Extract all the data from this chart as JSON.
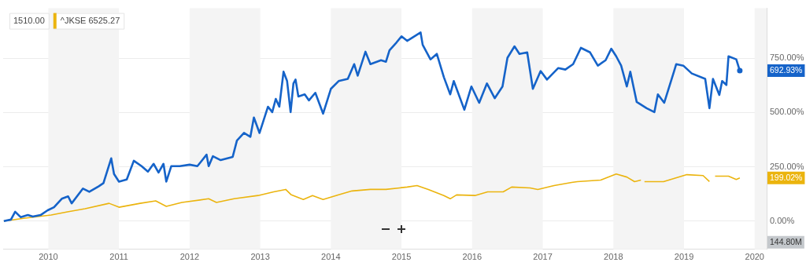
{
  "chart_data": {
    "type": "line",
    "xlim": [
      2009.36,
      2020.17
    ],
    "xticks": [
      2010,
      2011,
      2012,
      2013,
      2014,
      2015,
      2016,
      2017,
      2018,
      2019,
      2020
    ],
    "ylim": [
      -130,
      980
    ],
    "yticks": [
      {
        "value": 0,
        "label": "0.00%"
      },
      {
        "value": 250,
        "label": "250.00%"
      },
      {
        "value": 500,
        "label": "500.00%"
      },
      {
        "value": 750,
        "label": "750.00%"
      }
    ],
    "grid": "y",
    "legend": "top left",
    "marker": "none",
    "bands": [
      {
        "axis": "x",
        "from": 2010,
        "to": 2011,
        "color": "#f4f4f4"
      },
      {
        "axis": "x",
        "from": 2012,
        "to": 2013,
        "color": "#f4f4f4"
      },
      {
        "axis": "x",
        "from": 2014,
        "to": 2015,
        "color": "#f4f4f4"
      },
      {
        "axis": "x",
        "from": 2016,
        "to": 2017,
        "color": "#f4f4f4"
      },
      {
        "axis": "x",
        "from": 2018,
        "to": 2019,
        "color": "#f4f4f4"
      },
      {
        "axis": "x",
        "from": 2020,
        "to": 2020.17,
        "color": "#f4f4f4"
      }
    ],
    "annotations": [
      "1510.00",
      "692.93%",
      "199.02%",
      "144.80M"
    ],
    "series": [
      {
        "color": "#1563c9",
        "x": [
          2009.37,
          2009.47,
          2009.53,
          2009.61,
          2009.71,
          2009.78,
          2009.89,
          2009.99,
          2010.08,
          2010.19,
          2010.28,
          2010.33,
          2010.49,
          2010.58,
          2010.71,
          2010.78,
          2010.89,
          2010.93,
          2011.0,
          2011.11,
          2011.21,
          2011.32,
          2011.41,
          2011.49,
          2011.56,
          2011.63,
          2011.67,
          2011.74,
          2011.86,
          2012.0,
          2012.11,
          2012.24,
          2012.27,
          2012.33,
          2012.44,
          2012.61,
          2012.67,
          2012.77,
          2012.86,
          2012.91,
          2012.99,
          2013.11,
          2013.17,
          2013.22,
          2013.27,
          2013.33,
          2013.38,
          2013.43,
          2013.47,
          2013.5,
          2013.54,
          2013.63,
          2013.69,
          2013.78,
          2013.89,
          2014.0,
          2014.11,
          2014.24,
          2014.33,
          2014.38,
          2014.49,
          2014.56,
          2014.71,
          2014.78,
          2014.83,
          2014.93,
          2015.0,
          2015.08,
          2015.27,
          2015.3,
          2015.41,
          2015.5,
          2015.6,
          2015.69,
          2015.74,
          2015.89,
          2015.99,
          2016.1,
          2016.21,
          2016.32,
          2016.43,
          2016.5,
          2016.6,
          2016.67,
          2016.78,
          2016.86,
          2016.97,
          2017.06,
          2017.22,
          2017.32,
          2017.43,
          2017.54,
          2017.67,
          2017.78,
          2017.89,
          2017.97,
          2018.04,
          2018.11,
          2018.19,
          2018.24,
          2018.33,
          2018.47,
          2018.58,
          2018.63,
          2018.72,
          2018.86,
          2018.89,
          2018.99,
          2019.11,
          2019.3,
          2019.36,
          2019.41,
          2019.5,
          2019.54,
          2019.6,
          2019.63,
          2019.74,
          2019.79
        ],
        "values": [
          0,
          7,
          43,
          18,
          28,
          21,
          28,
          50,
          64,
          103,
          114,
          82,
          150,
          135,
          160,
          175,
          289,
          217,
          182,
          192,
          278,
          253,
          228,
          264,
          224,
          264,
          182,
          253,
          253,
          260,
          253,
          306,
          253,
          299,
          281,
          296,
          371,
          406,
          388,
          477,
          406,
          527,
          502,
          563,
          527,
          688,
          645,
          502,
          634,
          652,
          574,
          584,
          556,
          591,
          495,
          609,
          645,
          655,
          723,
          670,
          780,
          723,
          741,
          734,
          787,
          823,
          851,
          830,
          869,
          812,
          745,
          770,
          663,
          584,
          645,
          513,
          620,
          545,
          634,
          566,
          620,
          752,
          805,
          770,
          777,
          609,
          691,
          652,
          705,
          698,
          723,
          798,
          777,
          716,
          741,
          794,
          759,
          716,
          620,
          688,
          549,
          520,
          502,
          584,
          545,
          691,
          723,
          716,
          680,
          655,
          520,
          655,
          581,
          645,
          627,
          759,
          745,
          692.93
        ]
      },
      {
        "name": "^JKSE 6525.27",
        "color": "#ebb40e",
        "x": [
          2009.37,
          2009.67,
          2010.04,
          2010.27,
          2010.52,
          2010.86,
          2011.0,
          2011.3,
          2011.52,
          2011.67,
          2011.89,
          2012.27,
          2012.38,
          2012.63,
          2012.97,
          2013.19,
          2013.36,
          2013.44,
          2013.61,
          2013.74,
          2013.89,
          2014.11,
          2014.3,
          2014.56,
          2014.78,
          2015.08,
          2015.22,
          2015.38,
          2015.6,
          2015.69,
          2015.78,
          2016.04,
          2016.22,
          2016.44,
          2016.56,
          2016.82,
          2016.93,
          2017.16,
          2017.41,
          2017.49,
          2017.82,
          2018.04,
          2018.19,
          2018.3,
          2018.39,
          2018.42,
          2018.44,
          2018.71,
          2019.04,
          2019.27,
          2019.36,
          2019.39,
          2019.44,
          2019.63,
          2019.74,
          2019.79
        ],
        "values": [
          0,
          14,
          28,
          43,
          57,
          82,
          64,
          82,
          93,
          68,
          86,
          103,
          86,
          103,
          118,
          135,
          146,
          121,
          100,
          118,
          100,
          121,
          139,
          146,
          146,
          157,
          164,
          146,
          118,
          103,
          121,
          118,
          135,
          135,
          157,
          153,
          146,
          164,
          178,
          182,
          189,
          217,
          203,
          182,
          189,
          null,
          182,
          182,
          214,
          210,
          182,
          null,
          207,
          207,
          192,
          199.02
        ]
      }
    ]
  }
}
